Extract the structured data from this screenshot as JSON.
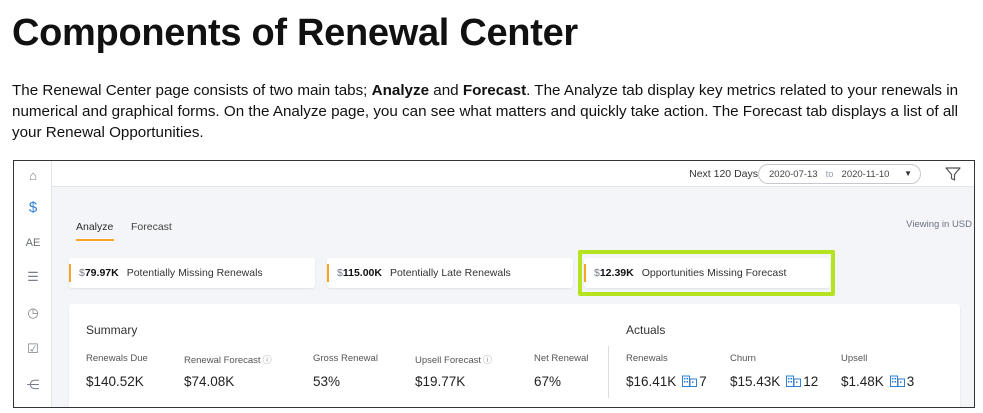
{
  "doc": {
    "title": "Components of Renewal Center",
    "intro": {
      "part1": "The Renewal Center page consists of two main tabs; ",
      "tab1": "Analyze",
      "part2": " and ",
      "tab2": "Forecast",
      "part3": ". The Analyze tab display key metrics related to your renewals in numerical and graphical forms. On the Analyze page, you can see what matters and quickly take action. The Forecast tab displays a list of all your Renewal Opportunities."
    }
  },
  "app": {
    "sidebar": {
      "items": [
        {
          "icon": "home-icon",
          "glyph": "⌂"
        },
        {
          "icon": "dollar-icon",
          "glyph": "$"
        },
        {
          "icon": "ae-text",
          "glyph": "AE"
        },
        {
          "icon": "list-icon",
          "glyph": "☰"
        },
        {
          "icon": "alarm-icon",
          "glyph": "◷"
        },
        {
          "icon": "checklist-icon",
          "glyph": "☑"
        },
        {
          "icon": "hierarchy-icon",
          "glyph": "⋲"
        }
      ]
    },
    "topbar": {
      "range_label": "Next 120 Days",
      "start_date": "2020-07-13",
      "to_label": "to",
      "end_date": "2020-11-10"
    },
    "tabs": [
      {
        "label": "Analyze",
        "active": true
      },
      {
        "label": "Forecast",
        "active": false
      }
    ],
    "viewing": "Viewing in USD",
    "metrics": [
      {
        "currency": "$",
        "value": "79.97K",
        "label": "Potentially Missing Renewals"
      },
      {
        "currency": "$",
        "value": "115.00K",
        "label": "Potentially Late Renewals"
      },
      {
        "currency": "$",
        "value": "12.39K",
        "label": "Opportunities Missing Forecast",
        "highlighted": true
      }
    ],
    "summary": {
      "title": "Summary",
      "items": [
        {
          "label": "Renewals Due",
          "value": "$140.52K",
          "info": false
        },
        {
          "label": "Renewal Forecast",
          "value": "$74.08K",
          "info": true
        },
        {
          "label": "Gross Renewal",
          "value": "53%",
          "info": false
        },
        {
          "label": "Upsell Forecast",
          "value": "$19.77K",
          "info": true
        },
        {
          "label": "Net Renewal",
          "value": "67%",
          "info": false
        }
      ]
    },
    "actuals": {
      "title": "Actuals",
      "items": [
        {
          "label": "Renewals",
          "value": "$16.41K",
          "count": "7"
        },
        {
          "label": "Churn",
          "value": "$15.43K",
          "count": "12"
        },
        {
          "label": "Upsell",
          "value": "$1.48K",
          "count": "3"
        }
      ]
    },
    "colors": {
      "accent": "#f5a623",
      "highlight": "#b6e31f",
      "icon_blue": "#2f7fd6"
    }
  }
}
